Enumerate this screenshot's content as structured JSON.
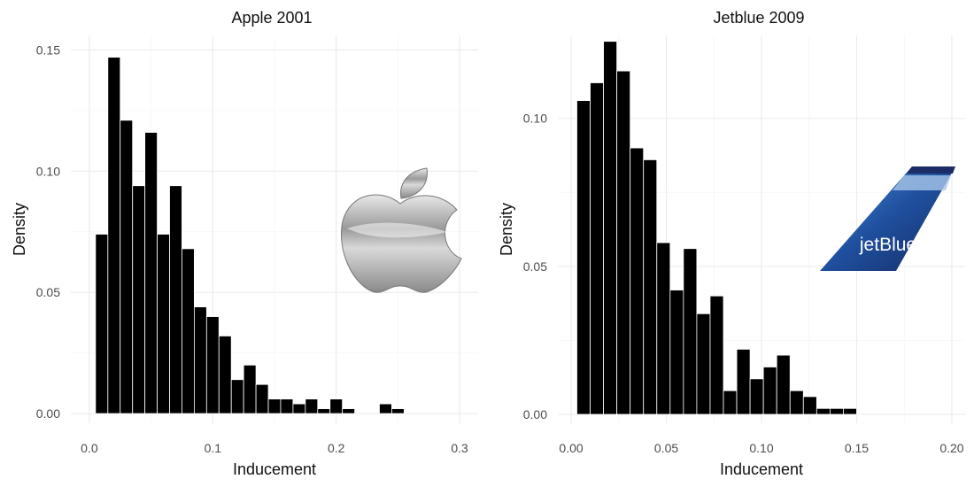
{
  "chart_data": [
    {
      "type": "bar",
      "title": "Apple 2001",
      "xlabel": "Inducement",
      "ylabel": "Density",
      "xlim": [
        -0.015,
        0.315
      ],
      "ylim": [
        -0.004,
        0.156
      ],
      "xticks": [
        0.0,
        0.1,
        0.2,
        0.3
      ],
      "xtick_labels": [
        "0.0",
        "0.1",
        "0.2",
        "0.3"
      ],
      "yticks": [
        0.0,
        0.05,
        0.1,
        0.15
      ],
      "ytick_labels": [
        "0.00",
        "0.05",
        "0.10",
        "0.15"
      ],
      "bin_start": 0.005,
      "bin_width": 0.01,
      "values": [
        0.074,
        0.147,
        0.121,
        0.094,
        0.116,
        0.074,
        0.094,
        0.068,
        0.044,
        0.04,
        0.032,
        0.014,
        0.02,
        0.012,
        0.006,
        0.006,
        0.004,
        0.006,
        0.002,
        0.006,
        0.002,
        0,
        0,
        0.004,
        0.002
      ],
      "grid": true,
      "logo": "apple-logo"
    },
    {
      "type": "bar",
      "title": "Jetblue 2009",
      "xlabel": "Inducement",
      "ylabel": "Density",
      "xlim": [
        -0.007,
        0.207
      ],
      "ylim": [
        -0.003,
        0.128
      ],
      "xticks": [
        0.0,
        0.05,
        0.1,
        0.15,
        0.2
      ],
      "xtick_labels": [
        "0.00",
        "0.05",
        "0.10",
        "0.15",
        "0.20"
      ],
      "yticks": [
        0.0,
        0.05,
        0.1
      ],
      "ytick_labels": [
        "0.00",
        "0.05",
        "0.10"
      ],
      "bin_start": 0.003,
      "bin_width": 0.007,
      "values": [
        0.106,
        0.112,
        0.126,
        0.116,
        0.09,
        0.086,
        0.058,
        0.042,
        0.056,
        0.034,
        0.04,
        0.008,
        0.022,
        0.012,
        0.016,
        0.02,
        0.008,
        0.006,
        0.002,
        0.002,
        0.002
      ],
      "grid": true,
      "logo": "jetblue-tail-logo",
      "logo_text": "jetBlue"
    }
  ]
}
